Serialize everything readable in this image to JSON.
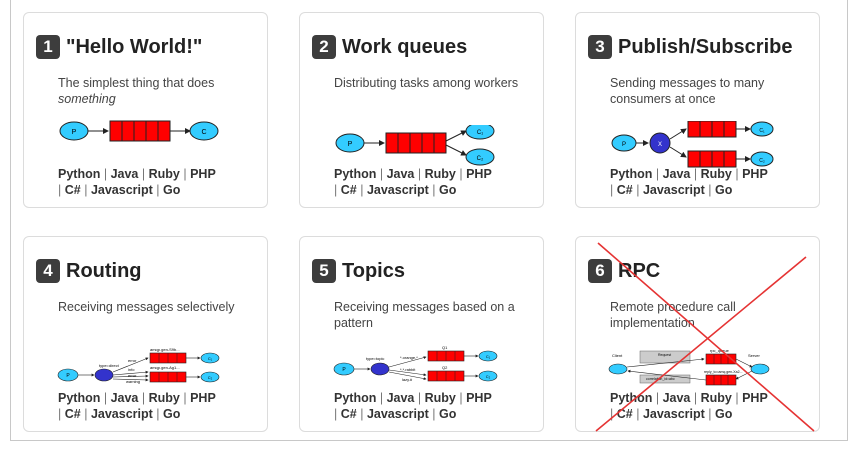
{
  "cards": [
    {
      "num": "1",
      "title": "\"Hello World!\"",
      "desc": "The simplest thing that does",
      "desc_em": "something",
      "langs": [
        "Python",
        "Java",
        "Ruby",
        "PHP",
        "C#",
        "Javascript",
        "Go"
      ]
    },
    {
      "num": "2",
      "title": "Work queues",
      "desc": "Distributing tasks among workers",
      "desc_em": "",
      "langs": [
        "Python",
        "Java",
        "Ruby",
        "PHP",
        "C#",
        "Javascript",
        "Go"
      ]
    },
    {
      "num": "3",
      "title": "Publish/Subscribe",
      "desc": "Sending messages to many consumers at once",
      "desc_em": "",
      "langs": [
        "Python",
        "Java",
        "Ruby",
        "PHP",
        "C#",
        "Javascript",
        "Go"
      ]
    },
    {
      "num": "4",
      "title": "Routing",
      "desc": "Receiving messages selectively",
      "desc_em": "",
      "langs": [
        "Python",
        "Java",
        "Ruby",
        "PHP",
        "C#",
        "Javascript",
        "Go"
      ]
    },
    {
      "num": "5",
      "title": "Topics",
      "desc": "Receiving messages based on a pattern",
      "desc_em": "",
      "langs": [
        "Python",
        "Java",
        "Ruby",
        "PHP",
        "C#",
        "Javascript",
        "Go"
      ]
    },
    {
      "num": "6",
      "title": "RPC",
      "desc": "Remote procedure call implementation",
      "desc_em": "",
      "langs": [
        "Python",
        "Java",
        "Ruby",
        "PHP",
        "C#",
        "Javascript",
        "Go"
      ]
    }
  ],
  "diagram_labels": {
    "producer": "P",
    "consumer": "C",
    "consumer1": "C₁",
    "consumer2": "C₂",
    "exchange": "X",
    "routing_type": "type=direct",
    "routing_keys": [
      "error",
      "info",
      "error",
      "warning"
    ],
    "routing_queues": [
      "amqp.gen-S9b...",
      "amqp.gen-Ag1..."
    ],
    "topic_type": "type=topic",
    "topic_keys": [
      "*.orange.*",
      "*.*.rabbit",
      "lazy.#"
    ],
    "topic_queues": [
      "Q1",
      "Q2"
    ],
    "rpc_client": "Client",
    "rpc_server": "Server",
    "rpc_queue": "rpc_queue",
    "rpc_request": "Request",
    "rpc_reply": "Reply",
    "rpc_request_props": "reply_to=amqp.gen-Xa2...\ncorrelation_id=abc",
    "rpc_reply_props": "correlation_id=abc",
    "rpc_reply_queue": "reply_to=amq.gen-Xa2..."
  },
  "colors": {
    "queue": "#ff0000",
    "node": "#33ccff",
    "exchange": "#3333cc",
    "cross": "#e53333"
  }
}
